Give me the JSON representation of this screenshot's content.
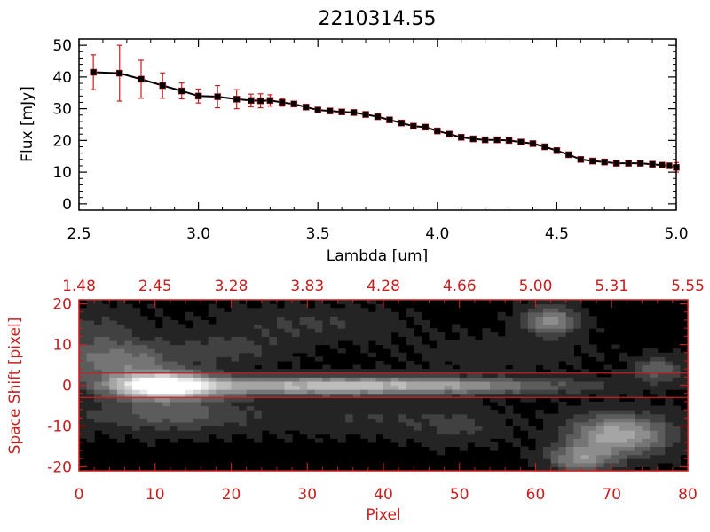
{
  "chart_data": [
    {
      "type": "scatter",
      "title": "2210314.55",
      "xlabel": "Lambda [um]",
      "ylabel": "Flux [mJy]",
      "xlim": [
        2.5,
        5.0
      ],
      "ylim": [
        -2,
        52
      ],
      "x_ticks": [
        "2.5",
        "3.0",
        "3.5",
        "4.0",
        "4.5",
        "5.0"
      ],
      "y_ticks": [
        "0",
        "10",
        "20",
        "30",
        "40",
        "50"
      ],
      "line_color": "#000000",
      "marker_color": "#000000",
      "error_color": "#c81e1e",
      "series": [
        {
          "name": "Flux",
          "x": [
            2.56,
            2.67,
            2.76,
            2.85,
            2.93,
            3.0,
            3.08,
            3.16,
            3.22,
            3.26,
            3.3,
            3.35,
            3.4,
            3.45,
            3.5,
            3.55,
            3.6,
            3.65,
            3.7,
            3.75,
            3.8,
            3.85,
            3.9,
            3.95,
            4.0,
            4.05,
            4.1,
            4.15,
            4.2,
            4.25,
            4.3,
            4.35,
            4.4,
            4.45,
            4.5,
            4.55,
            4.6,
            4.65,
            4.7,
            4.75,
            4.8,
            4.85,
            4.9,
            4.94,
            4.97,
            5.0
          ],
          "y": [
            41.5,
            41.2,
            39.3,
            37.3,
            35.6,
            34.0,
            33.8,
            33.0,
            32.6,
            32.5,
            32.6,
            32.0,
            31.5,
            30.5,
            29.6,
            29.3,
            29.0,
            28.8,
            28.2,
            27.5,
            26.5,
            25.5,
            24.5,
            24.2,
            23.0,
            22.0,
            21.0,
            20.5,
            20.2,
            20.2,
            20.0,
            19.5,
            19.0,
            18.0,
            16.8,
            15.5,
            14.0,
            13.5,
            13.2,
            12.8,
            12.8,
            12.8,
            12.5,
            12.2,
            12.0,
            11.5
          ],
          "err": [
            5.5,
            8.8,
            6.0,
            4.0,
            2.5,
            2.2,
            3.5,
            3.0,
            2.0,
            2.2,
            1.8,
            1.2,
            0.8,
            0.5,
            0.4,
            0.3,
            0.3,
            0.3,
            0.3,
            0.3,
            0.3,
            0.3,
            0.3,
            0.3,
            0.3,
            0.3,
            0.3,
            0.3,
            0.3,
            0.3,
            0.3,
            0.3,
            0.3,
            0.3,
            0.3,
            0.3,
            0.3,
            0.3,
            0.3,
            0.3,
            0.3,
            0.3,
            0.3,
            0.3,
            0.8,
            1.5
          ]
        }
      ]
    },
    {
      "type": "heatmap",
      "title": "",
      "xlabel": "Pixel",
      "ylabel": "Space Shift [pixel]",
      "xlim": [
        0,
        80
      ],
      "ylim": [
        -21,
        21
      ],
      "x_ticks": [
        "0",
        "10",
        "20",
        "30",
        "40",
        "50",
        "60",
        "70",
        "80"
      ],
      "y_ticks": [
        "-20",
        "-10",
        "0",
        "10",
        "20"
      ],
      "top_ticks": [
        "1.48",
        "2.45",
        "3.28",
        "3.83",
        "4.28",
        "4.66",
        "5.00",
        "5.31",
        "5.55"
      ],
      "extraction_window": [
        -3,
        3
      ],
      "axis_color": "#c81e1e",
      "colormap": "grayscale",
      "emission": [
        {
          "x": 11,
          "y": 0,
          "amp": 1.0,
          "sx": 4.5,
          "sy": 2.2
        },
        {
          "x": 30,
          "y": 0,
          "amp": 0.62,
          "sx": 14,
          "sy": 1.6
        },
        {
          "x": 52,
          "y": 0,
          "amp": 0.32,
          "sx": 12,
          "sy": 1.4
        },
        {
          "x": 5,
          "y": 6,
          "amp": 0.38,
          "sx": 6,
          "sy": 3.5
        },
        {
          "x": 3,
          "y": 14,
          "amp": 0.15,
          "sx": 4,
          "sy": 3.5
        },
        {
          "x": 20,
          "y": 9,
          "amp": 0.16,
          "sx": 5,
          "sy": 2.5
        },
        {
          "x": 12,
          "y": -7,
          "amp": 0.28,
          "sx": 8,
          "sy": 3
        },
        {
          "x": 30,
          "y": 15,
          "amp": 0.14,
          "sx": 8,
          "sy": 3
        },
        {
          "x": 38,
          "y": -8,
          "amp": 0.12,
          "sx": 8,
          "sy": 3
        },
        {
          "x": 55,
          "y": 8,
          "amp": 0.09,
          "sx": 8,
          "sy": 3
        },
        {
          "x": 62,
          "y": 16,
          "amp": 0.48,
          "sx": 2.5,
          "sy": 2.5
        },
        {
          "x": 76,
          "y": 4,
          "amp": 0.32,
          "sx": 2.2,
          "sy": 2
        },
        {
          "x": 71,
          "y": -12,
          "amp": 0.6,
          "sx": 4.5,
          "sy": 3.5
        },
        {
          "x": 66,
          "y": -18,
          "amp": 0.42,
          "sx": 3,
          "sy": 2.5
        },
        {
          "x": 50,
          "y": -10,
          "amp": 0.14,
          "sx": 4,
          "sy": 3
        }
      ]
    }
  ]
}
